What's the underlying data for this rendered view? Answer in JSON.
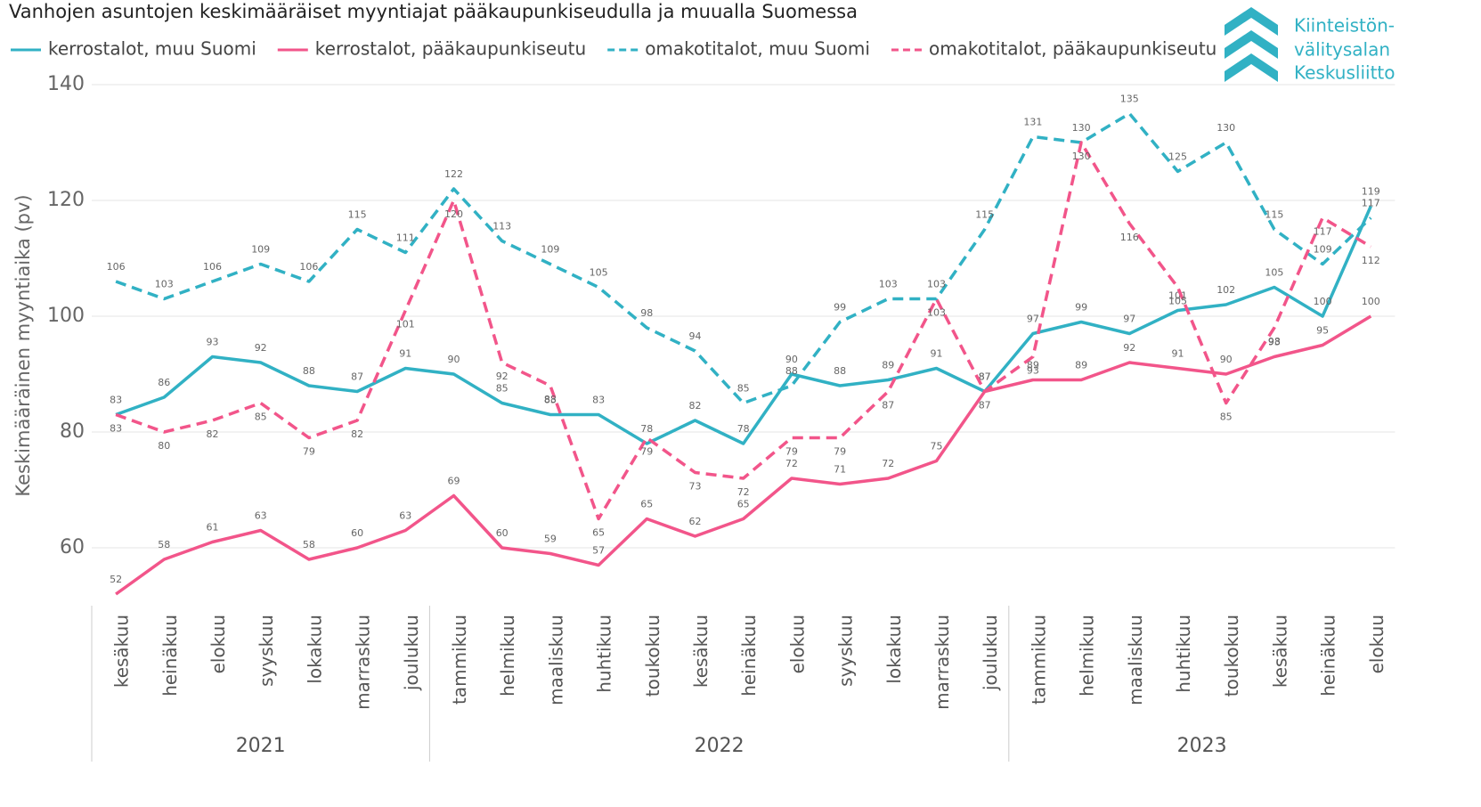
{
  "chart_data": {
    "type": "line",
    "title": "Vanhojen asuntojen keskimääräiset myyntiajat pääkaupunkiseudulla ja muualla Suomessa",
    "logo": [
      "Kiinteistön-",
      "välitysalan",
      "Keskusliitto"
    ],
    "y_label": "Keskimääräinen myyntiaika (pv)",
    "categories": [
      "kesäkuu",
      "heinäkuu",
      "elokuu",
      "syyskuu",
      "lokakuu",
      "marraskuu",
      "joulukuu",
      "tammikuu",
      "helmikuu",
      "maaliskuu",
      "huhtikuu",
      "toukokuu",
      "kesäkuu",
      "heinäkuu",
      "elokuu",
      "syyskuu",
      "lokakuu",
      "marraskuu",
      "joulukuu",
      "tammikuu",
      "helmikuu",
      "maaliskuu",
      "huhtikuu",
      "toukokuu",
      "kesäkuu",
      "heinäkuu",
      "elokuu"
    ],
    "groups": [
      {
        "label": "2021",
        "count": 7
      },
      {
        "label": "2022",
        "count": 12
      },
      {
        "label": "2023",
        "count": 8
      }
    ],
    "series": [
      {
        "name": "kerrostalot, muu Suomi",
        "color": "#31b1c4",
        "dash": false,
        "values": [
          83,
          86,
          93,
          92,
          88,
          87,
          91,
          90,
          85,
          83,
          83,
          78,
          82,
          78,
          90,
          88,
          89,
          91,
          87,
          97,
          99,
          97,
          101,
          102,
          105,
          100,
          119
        ]
      },
      {
        "name": "kerrostalot, pääkaupunkiseutu",
        "color": "#f2558a",
        "dash": false,
        "values": [
          52,
          58,
          61,
          63,
          58,
          60,
          63,
          69,
          60,
          59,
          57,
          65,
          62,
          65,
          72,
          71,
          72,
          75,
          87,
          89,
          89,
          92,
          91,
          90,
          93,
          95,
          100
        ]
      },
      {
        "name": "omakotitalot, muu Suomi",
        "color": "#31b1c4",
        "dash": true,
        "values": [
          106,
          103,
          106,
          109,
          106,
          115,
          111,
          122,
          113,
          109,
          105,
          98,
          94,
          85,
          88,
          99,
          103,
          103,
          115,
          131,
          130,
          135,
          125,
          130,
          115,
          109,
          117
        ]
      },
      {
        "name": "omakotitalot, pääkaupunkiseutu",
        "color": "#f2558a",
        "dash": true,
        "values": [
          83,
          80,
          82,
          85,
          79,
          82,
          101,
          120,
          92,
          88,
          65,
          79,
          73,
          72,
          79,
          79,
          87,
          103,
          87,
          93,
          130,
          116,
          105,
          85,
          98,
          117,
          112
        ]
      }
    ],
    "ylim": [
      50,
      140
    ],
    "yticks": [
      60,
      80,
      100,
      120,
      140
    ],
    "grid": true
  }
}
